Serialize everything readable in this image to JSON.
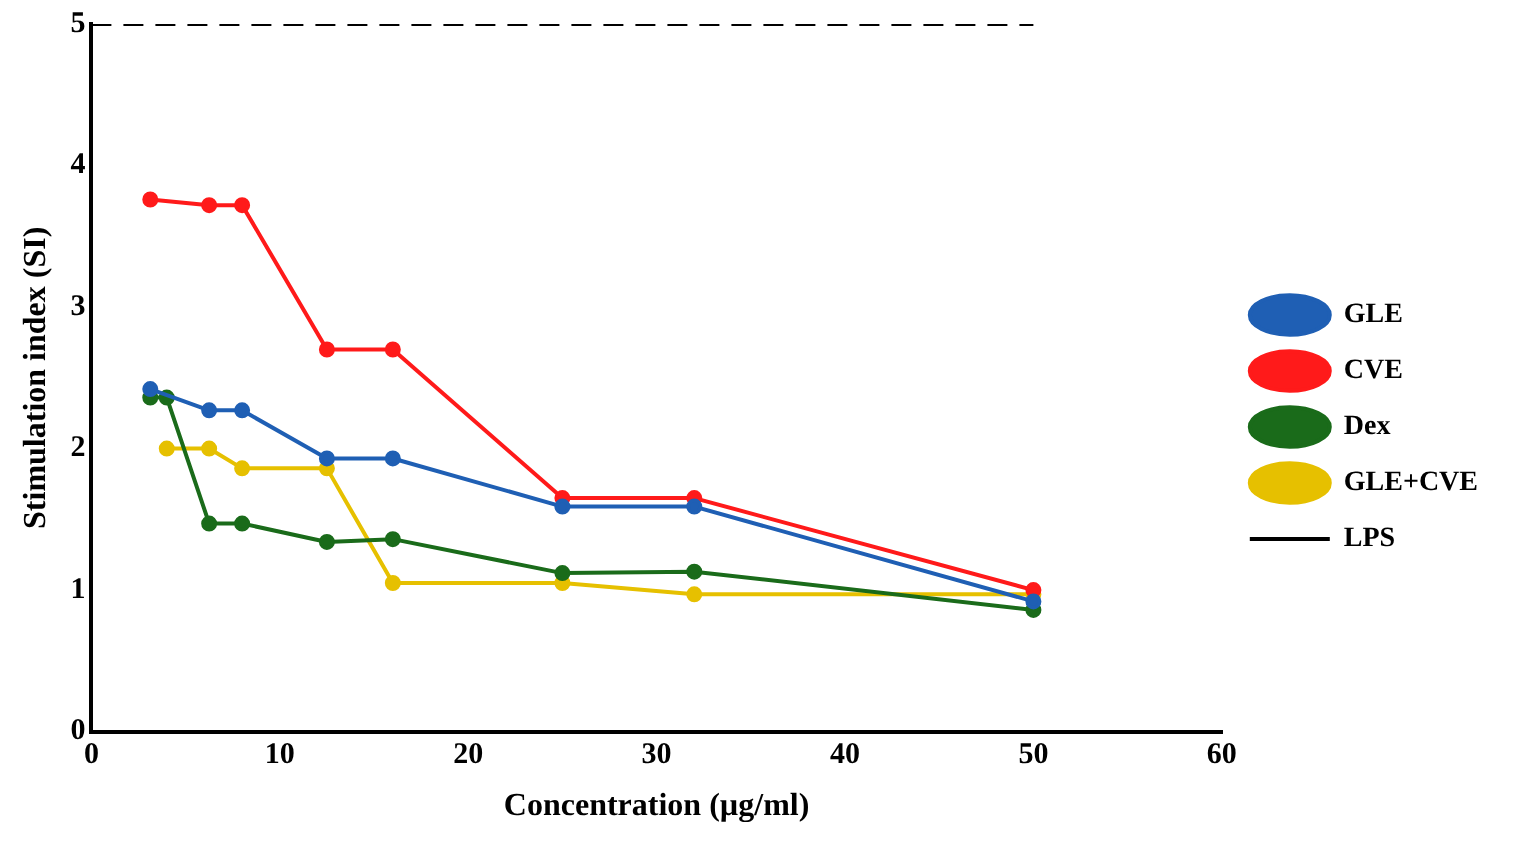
{
  "chart_data": {
    "type": "line",
    "xlabel": "Concentration (µg/ml)",
    "ylabel": "Stimulation index (SI)",
    "xlim": [
      0,
      60
    ],
    "xticks": [
      0,
      10,
      20,
      30,
      40,
      50,
      60
    ],
    "ylim": [
      0,
      5
    ],
    "yticks": [
      0,
      1,
      2,
      3,
      4,
      5
    ],
    "grid": false,
    "legend": "right",
    "marker": "circle",
    "line_style": "solid",
    "series": [
      {
        "name": "GLE",
        "color": "#1f5fb4",
        "x": [
          3.125,
          6.25,
          8,
          12.5,
          16,
          25,
          32,
          50
        ],
        "values": [
          2.42,
          2.27,
          2.27,
          1.93,
          1.93,
          1.59,
          1.59,
          0.92
        ]
      },
      {
        "name": "CVE",
        "color": "#ff1a1a",
        "x": [
          3.125,
          6.25,
          8,
          12.5,
          16,
          25,
          32,
          50
        ],
        "values": [
          3.76,
          3.72,
          3.72,
          2.7,
          2.7,
          1.65,
          1.65,
          1.0
        ]
      },
      {
        "name": "Dex",
        "color": "#1a6b1a",
        "x": [
          3.125,
          4,
          6.25,
          8,
          12.5,
          16,
          25,
          32,
          50
        ],
        "values": [
          2.36,
          2.36,
          1.47,
          1.47,
          1.34,
          1.36,
          1.12,
          1.13,
          0.86
        ]
      },
      {
        "name": "GLE+CVE",
        "color": "#e6c000",
        "x": [
          4,
          6.25,
          8,
          12.5,
          16,
          25,
          32,
          50
        ],
        "values": [
          2.0,
          2.0,
          1.86,
          1.86,
          1.05,
          1.05,
          0.97,
          0.97
        ]
      },
      {
        "name": "LPS",
        "color": "#000000",
        "type": "line",
        "line_style": "dashed",
        "marker": "none",
        "x": [
          0,
          50
        ],
        "values": [
          5,
          5
        ]
      }
    ]
  }
}
